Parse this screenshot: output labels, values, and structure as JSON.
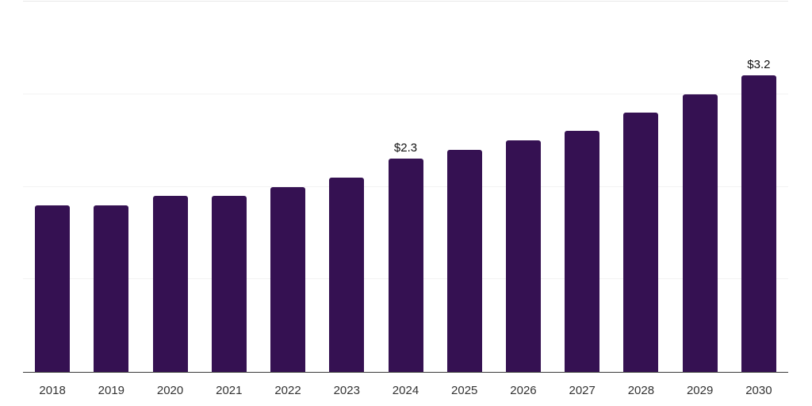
{
  "chart_data": {
    "type": "bar",
    "title": "",
    "xlabel": "",
    "ylabel": "",
    "categories": [
      "2018",
      "2019",
      "2020",
      "2021",
      "2022",
      "2023",
      "2024",
      "2025",
      "2026",
      "2027",
      "2028",
      "2029",
      "2030"
    ],
    "values": [
      1.8,
      1.8,
      1.9,
      1.9,
      2.0,
      2.1,
      2.3,
      2.4,
      2.5,
      2.6,
      2.8,
      3.0,
      3.2
    ],
    "data_labels": {
      "2024": "$2.3",
      "2030": "$3.2"
    },
    "ylim": [
      0,
      4
    ],
    "gridline_values": [
      1,
      2,
      3,
      4
    ],
    "grid": true,
    "legend": false,
    "colors": {
      "bar": "#351152",
      "axis": "#3d3d3d",
      "gridline": "#f3f3f3",
      "top_gridline": "#e9e9e9",
      "tick_label": "#333333",
      "data_label": "#111111",
      "background": "#ffffff"
    }
  }
}
